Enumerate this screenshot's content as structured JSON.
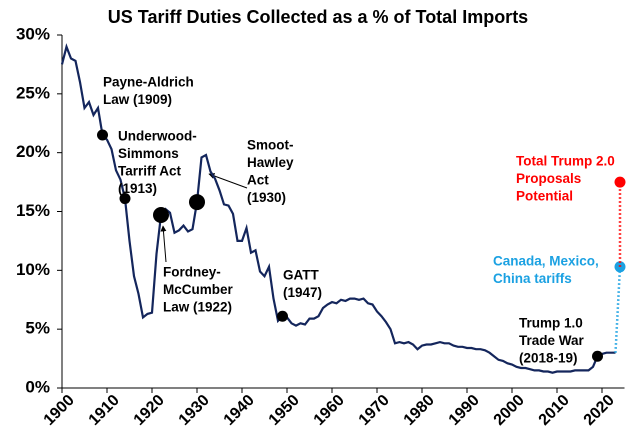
{
  "chart_data": {
    "type": "line",
    "title": "US Tariff Duties Collected as a % of Total Imports",
    "color": "#14265c",
    "xlim": [
      1900,
      2025
    ],
    "xticks": [
      1900,
      1910,
      1920,
      1930,
      1940,
      1950,
      1960,
      1970,
      1980,
      1990,
      2000,
      2010,
      2020
    ],
    "ylim": [
      0,
      30
    ],
    "yticks": [
      {
        "value": 0,
        "label": "0%"
      },
      {
        "value": 5,
        "label": "5%"
      },
      {
        "value": 10,
        "label": "10%"
      },
      {
        "value": 15,
        "label": "15%"
      },
      {
        "value": 20,
        "label": "20%"
      },
      {
        "value": 25,
        "label": "25%"
      },
      {
        "value": 30,
        "label": "30%"
      }
    ],
    "x": [
      1900,
      1901,
      1902,
      1903,
      1904,
      1905,
      1906,
      1907,
      1908,
      1909,
      1910,
      1911,
      1912,
      1913,
      1914,
      1915,
      1916,
      1917,
      1918,
      1919,
      1920,
      1921,
      1922,
      1923,
      1924,
      1925,
      1926,
      1927,
      1928,
      1929,
      1930,
      1931,
      1932,
      1933,
      1934,
      1935,
      1936,
      1937,
      1938,
      1939,
      1940,
      1941,
      1942,
      1943,
      1944,
      1945,
      1946,
      1947,
      1948,
      1949,
      1950,
      1951,
      1952,
      1953,
      1954,
      1955,
      1956,
      1957,
      1958,
      1959,
      1960,
      1961,
      1962,
      1963,
      1964,
      1965,
      1966,
      1967,
      1968,
      1969,
      1970,
      1971,
      1972,
      1973,
      1974,
      1975,
      1976,
      1977,
      1978,
      1979,
      1980,
      1981,
      1982,
      1983,
      1984,
      1985,
      1986,
      1987,
      1988,
      1989,
      1990,
      1991,
      1992,
      1993,
      1994,
      1995,
      1996,
      1997,
      1998,
      1999,
      2000,
      2001,
      2002,
      2003,
      2004,
      2005,
      2006,
      2007,
      2008,
      2009,
      2010,
      2011,
      2012,
      2013,
      2014,
      2015,
      2016,
      2017,
      2018,
      2019,
      2020,
      2021,
      2022,
      2023
    ],
    "values": [
      27.5,
      29.0,
      28.0,
      27.8,
      26.0,
      23.8,
      24.3,
      23.2,
      23.8,
      21.5,
      21.1,
      20.3,
      18.5,
      17.7,
      16.1,
      12.5,
      9.5,
      8.0,
      6.0,
      6.3,
      6.4,
      11.4,
      14.7,
      15.2,
      14.9,
      13.2,
      13.4,
      13.8,
      13.3,
      13.5,
      15.8,
      19.6,
      19.8,
      18.4,
      17.8,
      16.8,
      15.6,
      15.5,
      14.8,
      12.5,
      12.5,
      13.6,
      11.5,
      11.7,
      9.9,
      9.5,
      10.3,
      7.6,
      5.7,
      6.1,
      6.0,
      5.5,
      5.3,
      5.5,
      5.4,
      5.9,
      5.9,
      6.1,
      6.8,
      7.1,
      7.3,
      7.2,
      7.5,
      7.4,
      7.6,
      7.6,
      7.5,
      7.6,
      7.2,
      7.1,
      6.5,
      6.1,
      5.6,
      5.0,
      3.8,
      3.9,
      3.8,
      3.9,
      3.7,
      3.3,
      3.6,
      3.7,
      3.7,
      3.8,
      3.9,
      3.8,
      3.8,
      3.6,
      3.5,
      3.5,
      3.4,
      3.4,
      3.3,
      3.3,
      3.2,
      3.0,
      2.7,
      2.4,
      2.3,
      2.1,
      2.0,
      1.8,
      1.7,
      1.7,
      1.6,
      1.5,
      1.5,
      1.4,
      1.4,
      1.3,
      1.4,
      1.4,
      1.4,
      1.4,
      1.5,
      1.5,
      1.5,
      1.5,
      1.8,
      2.7,
      2.9,
      3.0,
      3.0,
      3.0
    ],
    "annotations": [
      {
        "lines": [
          "Payne-Aldrich",
          "Law (1909)"
        ],
        "x": 1909,
        "y": 21.5
      },
      {
        "lines": [
          "Underwood-",
          "Simmons",
          "Tarriff Act",
          "(1913)"
        ],
        "x": 1914,
        "y": 16.1
      },
      {
        "lines": [
          "Fordney-",
          "McCumber",
          "Law (1922)"
        ],
        "x": 1922,
        "y": 14.7
      },
      {
        "lines": [
          "Smoot-",
          "Hawley",
          "Act",
          "(1930)"
        ],
        "x": 1930,
        "y": 15.8
      },
      {
        "lines": [
          "GATT",
          "(1947)"
        ],
        "x": 1949,
        "y": 6.1
      },
      {
        "lines": [
          "Trump 1.0",
          "Trade War",
          "(2018-19)"
        ],
        "x": 2019,
        "y": 2.7
      }
    ],
    "projections": [
      {
        "lines": [
          "Canada, Mexico,",
          "China tariffs"
        ],
        "x": 2024,
        "value": 10.3,
        "color": "#1ba1e2"
      },
      {
        "lines": [
          "Total Trump 2.0",
          "Proposals",
          "Potential"
        ],
        "x": 2024,
        "value": 17.5,
        "color": "#ff0000"
      }
    ]
  }
}
